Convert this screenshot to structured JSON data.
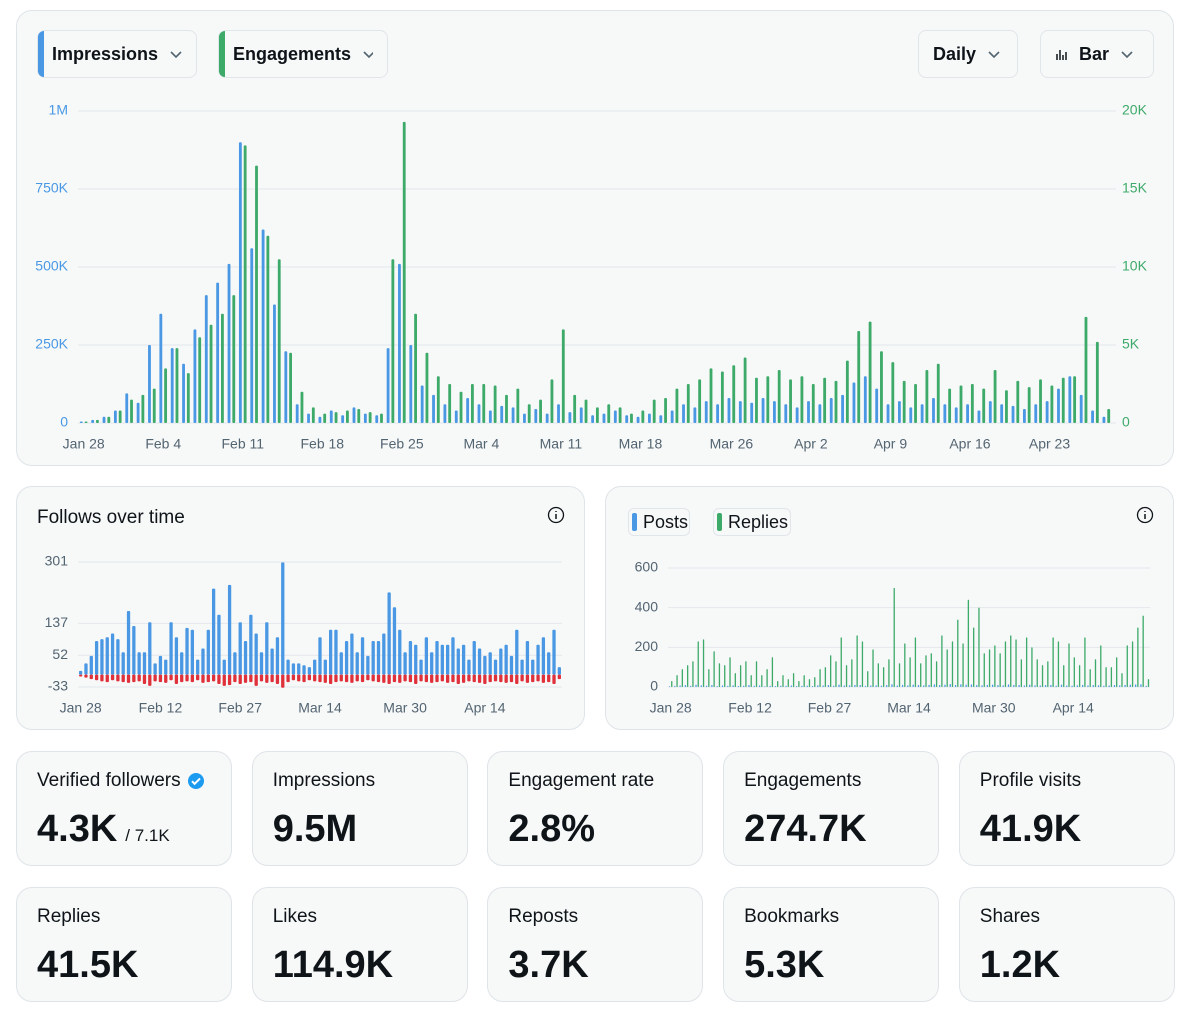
{
  "controls": {
    "interval": "Daily",
    "view": "Bar"
  },
  "chart_data": [
    {
      "type": "bar",
      "colored_axes": true,
      "grid": true,
      "stacked": false,
      "categories": [
        "Jan 28",
        null,
        null,
        null,
        null,
        null,
        null,
        "Feb 4",
        null,
        null,
        null,
        null,
        null,
        null,
        "Feb 11",
        null,
        null,
        null,
        null,
        null,
        null,
        "Feb 18",
        null,
        null,
        null,
        null,
        null,
        null,
        "Feb 25",
        null,
        null,
        null,
        null,
        null,
        null,
        "Mar 4",
        null,
        null,
        null,
        null,
        null,
        null,
        "Mar 11",
        null,
        null,
        null,
        null,
        null,
        null,
        "Mar 18",
        null,
        null,
        null,
        null,
        null,
        null,
        null,
        "Mar 26",
        null,
        null,
        null,
        null,
        null,
        null,
        "Apr 2",
        null,
        null,
        null,
        null,
        null,
        null,
        "Apr 9",
        null,
        null,
        null,
        null,
        null,
        null,
        "Apr 16",
        null,
        null,
        null,
        null,
        null,
        null,
        "Apr 23",
        null,
        null,
        null,
        null,
        null
      ],
      "ylim": [
        0,
        1000000
      ],
      "yticks": [
        0,
        {
          "value": 250000,
          "label": "250K"
        },
        {
          "value": 500000,
          "label": "500K"
        },
        {
          "value": 750000,
          "label": "750K"
        },
        {
          "value": 1000000,
          "label": "1M"
        }
      ],
      "y2lim": [
        0,
        20000
      ],
      "y2ticks": [
        0,
        {
          "value": 5000,
          "label": "5K"
        },
        {
          "value": 10000,
          "label": "10K"
        },
        {
          "value": 15000,
          "label": "15K"
        },
        {
          "value": 20000,
          "label": "20K"
        }
      ],
      "series": [
        {
          "name": "Impressions",
          "color": "#4a98e4",
          "values": [
            5000,
            10000,
            20000,
            40000,
            95000,
            65000,
            250000,
            350000,
            240000,
            190000,
            300000,
            410000,
            450000,
            510000,
            900000,
            560000,
            620000,
            380000,
            230000,
            60000,
            30000,
            20000,
            40000,
            25000,
            50000,
            30000,
            25000,
            240000,
            510000,
            250000,
            120000,
            90000,
            60000,
            40000,
            80000,
            60000,
            40000,
            55000,
            50000,
            30000,
            45000,
            30000,
            60000,
            35000,
            50000,
            25000,
            30000,
            40000,
            25000,
            20000,
            30000,
            25000,
            40000,
            60000,
            50000,
            70000,
            60000,
            80000,
            70000,
            65000,
            80000,
            70000,
            60000,
            50000,
            70000,
            60000,
            80000,
            90000,
            130000,
            150000,
            110000,
            60000,
            70000,
            50000,
            60000,
            80000,
            60000,
            50000,
            60000,
            40000,
            70000,
            60000,
            55000,
            45000,
            60000,
            70000,
            110000,
            150000,
            90000,
            40000,
            20000
          ]
        },
        {
          "name": "Engagements",
          "color": "#3eaa6a",
          "axis": "y2",
          "values": [
            100,
            200,
            400,
            800,
            1500,
            1800,
            2200,
            3500,
            4800,
            3200,
            5500,
            6300,
            7000,
            8200,
            17800,
            16500,
            12000,
            10500,
            4500,
            2000,
            1000,
            600,
            700,
            800,
            900,
            700,
            600,
            10500,
            19300,
            7000,
            4500,
            3000,
            2500,
            2000,
            2500,
            2500,
            2400,
            1800,
            2200,
            1200,
            1500,
            2800,
            6000,
            1800,
            1500,
            1000,
            1200,
            1000,
            600,
            800,
            1500,
            1600,
            2200,
            2500,
            2800,
            3500,
            3300,
            3700,
            4200,
            2900,
            3000,
            3400,
            2800,
            3000,
            2500,
            2900,
            2700,
            4000,
            5900,
            6500,
            4600,
            3900,
            2700,
            2500,
            3400,
            3800,
            2200,
            2400,
            2500,
            2200,
            3400,
            2100,
            2700,
            2300,
            2800,
            2400,
            2900,
            3000,
            6800,
            5200,
            900
          ]
        }
      ]
    },
    {
      "type": "bar",
      "title": "Follows over time",
      "grid": true,
      "stacked": true,
      "categories": [
        "Jan 28",
        null,
        null,
        null,
        null,
        null,
        null,
        null,
        null,
        null,
        null,
        null,
        null,
        null,
        null,
        "Feb 12",
        null,
        null,
        null,
        null,
        null,
        null,
        null,
        null,
        null,
        null,
        null,
        null,
        null,
        null,
        "Feb 27",
        null,
        null,
        null,
        null,
        null,
        null,
        null,
        null,
        null,
        null,
        null,
        null,
        null,
        null,
        "Mar 14",
        null,
        null,
        null,
        null,
        null,
        null,
        null,
        null,
        null,
        null,
        null,
        null,
        null,
        null,
        null,
        "Mar 30",
        null,
        null,
        null,
        null,
        null,
        null,
        null,
        null,
        null,
        null,
        null,
        null,
        null,
        null,
        "Apr 14",
        null,
        null,
        null,
        null,
        null,
        null,
        null,
        null,
        null,
        null,
        null,
        null,
        null,
        null
      ],
      "ylim": [
        -33,
        301
      ],
      "yticks": [
        -33,
        52,
        137,
        301
      ],
      "series": [
        {
          "color": "#4a98e4",
          "values": [
            10,
            30,
            50,
            90,
            95,
            100,
            110,
            95,
            60,
            170,
            130,
            60,
            60,
            140,
            30,
            50,
            40,
            140,
            100,
            60,
            125,
            120,
            40,
            70,
            120,
            230,
            160,
            40,
            240,
            60,
            140,
            90,
            160,
            110,
            60,
            140,
            70,
            100,
            300,
            40,
            30,
            30,
            25,
            20,
            40,
            100,
            40,
            120,
            120,
            60,
            90,
            110,
            60,
            100,
            50,
            90,
            90,
            110,
            220,
            180,
            120,
            60,
            90,
            80,
            40,
            100,
            60,
            90,
            80,
            80,
            100,
            70,
            80,
            40,
            90,
            70,
            50,
            60,
            40,
            70,
            80,
            50,
            120,
            40,
            90,
            40,
            80,
            100,
            60,
            120,
            20
          ]
        },
        {
          "color": "#e0313b",
          "values": [
            -5,
            -8,
            -12,
            -15,
            -18,
            -20,
            -15,
            -18,
            -20,
            -22,
            -20,
            -18,
            -25,
            -30,
            -18,
            -20,
            -22,
            -15,
            -25,
            -20,
            -18,
            -20,
            -15,
            -22,
            -20,
            -18,
            -25,
            -30,
            -28,
            -20,
            -25,
            -22,
            -20,
            -30,
            -18,
            -22,
            -20,
            -25,
            -35,
            -20,
            -15,
            -18,
            -20,
            -15,
            -18,
            -20,
            -22,
            -25,
            -20,
            -18,
            -20,
            -22,
            -18,
            -20,
            -15,
            -18,
            -20,
            -22,
            -25,
            -20,
            -22,
            -18,
            -20,
            -25,
            -18,
            -20,
            -22,
            -20,
            -18,
            -22,
            -20,
            -25,
            -22,
            -18,
            -20,
            -22,
            -25,
            -20,
            -18,
            -20,
            -22,
            -20,
            -25,
            -18,
            -22,
            -20,
            -18,
            -22,
            -20,
            -25,
            -12
          ]
        }
      ]
    },
    {
      "type": "bar",
      "grid": true,
      "stacked": false,
      "categories": [
        "Jan 28",
        null,
        null,
        null,
        null,
        null,
        null,
        null,
        null,
        null,
        null,
        null,
        null,
        null,
        null,
        "Feb 12",
        null,
        null,
        null,
        null,
        null,
        null,
        null,
        null,
        null,
        null,
        null,
        null,
        null,
        null,
        "Feb 27",
        null,
        null,
        null,
        null,
        null,
        null,
        null,
        null,
        null,
        null,
        null,
        null,
        null,
        null,
        "Mar 14",
        null,
        null,
        null,
        null,
        null,
        null,
        null,
        null,
        null,
        null,
        null,
        null,
        null,
        null,
        null,
        "Mar 30",
        null,
        null,
        null,
        null,
        null,
        null,
        null,
        null,
        null,
        null,
        null,
        null,
        null,
        null,
        "Apr 14",
        null,
        null,
        null,
        null,
        null,
        null,
        null,
        null,
        null,
        null,
        null,
        null,
        null,
        null
      ],
      "ylim": [
        0,
        600
      ],
      "yticks": [
        0,
        200,
        400,
        600
      ],
      "series": [
        {
          "name": "Posts",
          "color": "#4a98e4",
          "values": [
            4,
            6,
            8,
            10,
            6,
            12,
            9,
            7,
            10,
            5,
            8,
            6,
            9,
            5,
            7,
            10,
            6,
            8,
            4,
            6,
            5,
            7,
            6,
            8,
            5,
            6,
            7,
            5,
            9,
            8,
            10,
            7,
            12,
            8,
            9,
            11,
            10,
            6,
            8,
            9,
            7,
            10,
            14,
            8,
            11,
            9,
            12,
            10,
            9,
            11,
            13,
            10,
            12,
            15,
            11,
            14,
            12,
            13,
            10,
            9,
            11,
            12,
            10,
            9,
            13,
            11,
            10,
            8,
            12,
            9,
            8,
            10,
            11,
            7,
            12,
            8,
            7,
            9,
            11,
            8,
            10,
            9,
            7,
            8,
            10,
            9,
            11,
            12,
            13,
            14,
            6
          ]
        },
        {
          "name": "Replies",
          "color": "#3eaa6a",
          "values": [
            30,
            60,
            90,
            110,
            130,
            230,
            240,
            90,
            180,
            120,
            110,
            150,
            70,
            110,
            130,
            60,
            130,
            60,
            90,
            150,
            30,
            60,
            40,
            70,
            30,
            60,
            40,
            50,
            90,
            100,
            160,
            130,
            250,
            110,
            140,
            260,
            230,
            80,
            190,
            120,
            100,
            140,
            500,
            120,
            220,
            150,
            250,
            120,
            160,
            170,
            130,
            260,
            190,
            230,
            340,
            220,
            440,
            300,
            400,
            170,
            190,
            210,
            170,
            230,
            260,
            240,
            140,
            250,
            200,
            140,
            110,
            130,
            250,
            230,
            110,
            220,
            150,
            110,
            250,
            90,
            140,
            210,
            100,
            100,
            150,
            70,
            210,
            230,
            300,
            360,
            40
          ]
        }
      ]
    }
  ],
  "stats": [
    {
      "label": "Verified followers",
      "value": "4.3K",
      "total": "/ 7.1K"
    },
    {
      "label": "Impressions",
      "value": "9.5M"
    },
    {
      "label": "Engagement rate",
      "value": "2.8%"
    },
    {
      "label": "Engagements",
      "value": "274.7K"
    },
    {
      "label": "Profile visits",
      "value": "41.9K"
    },
    {
      "label": "Replies",
      "value": "41.5K"
    },
    {
      "label": "Likes",
      "value": "114.9K"
    },
    {
      "label": "Reposts",
      "value": "3.7K"
    },
    {
      "label": "Bookmarks",
      "value": "5.3K"
    },
    {
      "label": "Shares",
      "value": "1.2K"
    }
  ]
}
